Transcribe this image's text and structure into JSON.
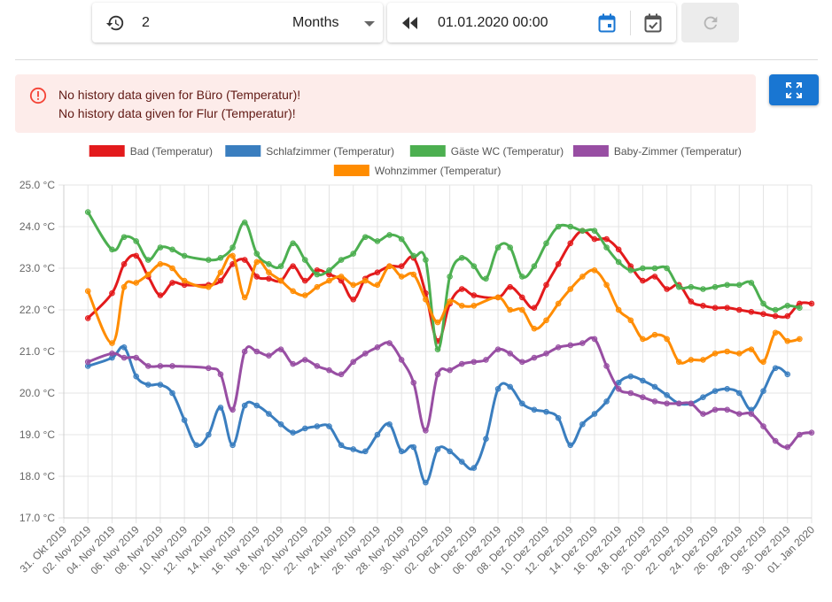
{
  "range": {
    "value": "2",
    "unit": "Months"
  },
  "start": {
    "value": "01.01.2020 00:00"
  },
  "alert": {
    "lines": [
      "No history data given for Büro (Temperatur)!",
      "No history data given for Flur (Temperatur)!"
    ]
  },
  "colors": {
    "accent": "#1976d2",
    "alert_bg": "#fdecea",
    "alert_icon": "#f44336"
  },
  "icons": [
    "history-icon",
    "dropdown-arrow-icon",
    "rewind-icon",
    "calendar-icon",
    "calendar-check-icon",
    "refresh-icon",
    "error-icon",
    "fullscreen-icon"
  ],
  "chart_data": {
    "type": "line",
    "title": "",
    "xlabel": "",
    "ylabel": "",
    "ylim": [
      17,
      25
    ],
    "yticks": [
      "17.0 °C",
      "18.0 °C",
      "19.0 °C",
      "20.0 °C",
      "21.0 °C",
      "22.0 °C",
      "23.0 °C",
      "24.0 °C",
      "25.0 °C"
    ],
    "xticks": [
      "31. Okt 2019",
      "02. Nov 2019",
      "04. Nov 2019",
      "06. Nov 2019",
      "08. Nov 2019",
      "10. Nov 2019",
      "12. Nov 2019",
      "14. Nov 2019",
      "16. Nov 2019",
      "18. Nov 2019",
      "20. Nov 2019",
      "22. Nov 2019",
      "24. Nov 2019",
      "26. Nov 2019",
      "28. Nov 2019",
      "30. Nov 2019",
      "02. Dez 2019",
      "04. Dez 2019",
      "06. Dez 2019",
      "08. Dez 2019",
      "10. Dez 2019",
      "12. Dez 2019",
      "14. Dez 2019",
      "16. Dez 2019",
      "18. Dez 2019",
      "20. Dez 2019",
      "22. Dez 2019",
      "24. Dez 2019",
      "26. Dez 2019",
      "28. Dez 2019",
      "30. Dez 2019",
      "01. Jan 2020"
    ],
    "legend_position": "top",
    "grid": true,
    "series": [
      {
        "name": "Bad (Temperatur)",
        "color": "#e31a1c",
        "points": [
          [
            1.0,
            21.8
          ],
          [
            2.0,
            22.4
          ],
          [
            2.5,
            23.1
          ],
          [
            3.0,
            23.3
          ],
          [
            3.5,
            22.8
          ],
          [
            4.0,
            22.35
          ],
          [
            4.5,
            22.65
          ],
          [
            5.0,
            22.6
          ],
          [
            6.0,
            22.6
          ],
          [
            6.5,
            22.7
          ],
          [
            7.0,
            23.1
          ],
          [
            7.5,
            23.2
          ],
          [
            8.0,
            22.8
          ],
          [
            8.5,
            22.75
          ],
          [
            9.0,
            22.7
          ],
          [
            9.5,
            23.05
          ],
          [
            10.0,
            22.7
          ],
          [
            10.5,
            22.95
          ],
          [
            11.0,
            22.85
          ],
          [
            11.5,
            22.7
          ],
          [
            12.0,
            22.25
          ],
          [
            12.5,
            22.75
          ],
          [
            13.0,
            22.9
          ],
          [
            13.5,
            23.05
          ],
          [
            14.0,
            23.05
          ],
          [
            14.5,
            23.25
          ],
          [
            15.0,
            22.4
          ],
          [
            15.5,
            21.25
          ],
          [
            16.0,
            22.15
          ],
          [
            16.5,
            22.5
          ],
          [
            17.0,
            22.35
          ],
          [
            18.0,
            22.3
          ],
          [
            18.5,
            22.55
          ],
          [
            19.0,
            22.3
          ],
          [
            19.5,
            22.05
          ],
          [
            20.0,
            22.6
          ],
          [
            20.5,
            23.1
          ],
          [
            21.0,
            23.6
          ],
          [
            21.5,
            23.9
          ],
          [
            22.0,
            23.7
          ],
          [
            22.5,
            23.7
          ],
          [
            23.0,
            23.45
          ],
          [
            23.5,
            23.05
          ],
          [
            24.0,
            22.7
          ],
          [
            24.5,
            22.8
          ],
          [
            25.0,
            22.5
          ],
          [
            25.5,
            22.6
          ],
          [
            26.0,
            22.2
          ],
          [
            26.5,
            22.1
          ],
          [
            27.0,
            22.05
          ],
          [
            27.5,
            22.05
          ],
          [
            28.0,
            22.0
          ],
          [
            28.5,
            21.95
          ],
          [
            29.0,
            21.9
          ],
          [
            29.5,
            21.85
          ],
          [
            30.0,
            21.85
          ],
          [
            30.5,
            22.15
          ],
          [
            31.0,
            22.15
          ]
        ]
      },
      {
        "name": "Schlafzimmer (Temperatur)",
        "color": "#3a7ebf",
        "points": [
          [
            1.0,
            20.65
          ],
          [
            2.0,
            20.85
          ],
          [
            2.5,
            21.1
          ],
          [
            3.0,
            20.4
          ],
          [
            3.5,
            20.2
          ],
          [
            4.0,
            20.2
          ],
          [
            4.5,
            20.0
          ],
          [
            5.0,
            19.35
          ],
          [
            5.5,
            18.75
          ],
          [
            6.0,
            19.0
          ],
          [
            6.5,
            19.65
          ],
          [
            7.0,
            18.75
          ],
          [
            7.5,
            19.7
          ],
          [
            8.0,
            19.7
          ],
          [
            8.5,
            19.5
          ],
          [
            9.0,
            19.25
          ],
          [
            9.5,
            19.05
          ],
          [
            10.0,
            19.15
          ],
          [
            10.5,
            19.2
          ],
          [
            11.0,
            19.2
          ],
          [
            11.5,
            18.75
          ],
          [
            12.0,
            18.65
          ],
          [
            12.5,
            18.6
          ],
          [
            13.0,
            19.0
          ],
          [
            13.5,
            19.25
          ],
          [
            14.0,
            18.6
          ],
          [
            14.5,
            18.7
          ],
          [
            15.0,
            17.85
          ],
          [
            15.5,
            18.65
          ],
          [
            16.0,
            18.6
          ],
          [
            16.5,
            18.35
          ],
          [
            17.0,
            18.2
          ],
          [
            17.5,
            18.9
          ],
          [
            18.0,
            20.1
          ],
          [
            18.5,
            20.15
          ],
          [
            19.0,
            19.75
          ],
          [
            19.5,
            19.6
          ],
          [
            20.0,
            19.55
          ],
          [
            20.5,
            19.4
          ],
          [
            21.0,
            18.75
          ],
          [
            21.5,
            19.25
          ],
          [
            22.0,
            19.5
          ],
          [
            22.5,
            19.8
          ],
          [
            23.0,
            20.25
          ],
          [
            23.5,
            20.4
          ],
          [
            24.0,
            20.3
          ],
          [
            24.5,
            20.15
          ],
          [
            25.0,
            19.95
          ],
          [
            25.5,
            19.75
          ],
          [
            26.0,
            19.75
          ],
          [
            26.5,
            19.9
          ],
          [
            27.0,
            20.05
          ],
          [
            27.5,
            20.1
          ],
          [
            28.0,
            20.0
          ],
          [
            28.5,
            19.6
          ],
          [
            29.0,
            20.05
          ],
          [
            29.5,
            20.6
          ],
          [
            30.0,
            20.45
          ]
        ]
      },
      {
        "name": "Gäste WC (Temperatur)",
        "color": "#4caf50",
        "points": [
          [
            1.0,
            24.35
          ],
          [
            2.0,
            23.45
          ],
          [
            2.5,
            23.75
          ],
          [
            3.0,
            23.65
          ],
          [
            3.5,
            23.2
          ],
          [
            4.0,
            23.5
          ],
          [
            4.5,
            23.45
          ],
          [
            5.0,
            23.3
          ],
          [
            6.0,
            23.2
          ],
          [
            6.5,
            23.25
          ],
          [
            7.0,
            23.5
          ],
          [
            7.5,
            24.1
          ],
          [
            8.0,
            23.35
          ],
          [
            8.5,
            23.1
          ],
          [
            9.0,
            23.05
          ],
          [
            9.5,
            23.6
          ],
          [
            10.0,
            23.2
          ],
          [
            10.5,
            22.85
          ],
          [
            11.0,
            22.95
          ],
          [
            11.5,
            23.2
          ],
          [
            12.0,
            23.35
          ],
          [
            12.5,
            23.75
          ],
          [
            13.0,
            23.65
          ],
          [
            13.5,
            23.8
          ],
          [
            14.0,
            23.7
          ],
          [
            14.5,
            23.3
          ],
          [
            15.0,
            23.2
          ],
          [
            15.5,
            21.05
          ],
          [
            16.0,
            22.8
          ],
          [
            16.5,
            23.25
          ],
          [
            17.0,
            23.05
          ],
          [
            17.5,
            22.75
          ],
          [
            18.0,
            23.5
          ],
          [
            18.5,
            23.5
          ],
          [
            19.0,
            22.8
          ],
          [
            19.5,
            23.05
          ],
          [
            20.0,
            23.6
          ],
          [
            20.5,
            24.0
          ],
          [
            21.0,
            24.0
          ],
          [
            21.5,
            23.9
          ],
          [
            22.0,
            23.9
          ],
          [
            22.5,
            23.5
          ],
          [
            23.0,
            23.15
          ],
          [
            23.5,
            22.95
          ],
          [
            24.0,
            23.0
          ],
          [
            24.5,
            23.0
          ],
          [
            25.0,
            23.0
          ],
          [
            25.5,
            22.55
          ],
          [
            26.0,
            22.55
          ],
          [
            26.5,
            22.5
          ],
          [
            27.0,
            22.55
          ],
          [
            27.5,
            22.6
          ],
          [
            28.0,
            22.6
          ],
          [
            28.5,
            22.65
          ],
          [
            29.0,
            22.15
          ],
          [
            29.5,
            22.0
          ],
          [
            30.0,
            22.1
          ],
          [
            30.5,
            22.05
          ]
        ]
      },
      {
        "name": "Baby-Zimmer (Temperatur)",
        "color": "#984ea3",
        "points": [
          [
            1.0,
            20.75
          ],
          [
            2.0,
            20.95
          ],
          [
            2.5,
            20.85
          ],
          [
            3.0,
            20.85
          ],
          [
            3.5,
            20.65
          ],
          [
            4.0,
            20.65
          ],
          [
            4.5,
            20.65
          ],
          [
            6.0,
            20.6
          ],
          [
            6.5,
            20.45
          ],
          [
            7.0,
            19.6
          ],
          [
            7.5,
            21.0
          ],
          [
            8.0,
            21.0
          ],
          [
            8.5,
            20.9
          ],
          [
            9.0,
            21.05
          ],
          [
            9.5,
            20.7
          ],
          [
            10.0,
            20.8
          ],
          [
            10.5,
            20.65
          ],
          [
            11.0,
            20.55
          ],
          [
            11.5,
            20.45
          ],
          [
            12.0,
            20.75
          ],
          [
            12.5,
            20.95
          ],
          [
            13.0,
            21.1
          ],
          [
            13.5,
            21.2
          ],
          [
            14.0,
            20.8
          ],
          [
            14.5,
            20.25
          ],
          [
            15.0,
            19.1
          ],
          [
            15.5,
            20.45
          ],
          [
            16.0,
            20.55
          ],
          [
            16.5,
            20.7
          ],
          [
            17.0,
            20.75
          ],
          [
            17.5,
            20.8
          ],
          [
            18.0,
            21.05
          ],
          [
            18.5,
            20.95
          ],
          [
            19.0,
            20.75
          ],
          [
            19.5,
            20.85
          ],
          [
            20.0,
            20.95
          ],
          [
            20.5,
            21.1
          ],
          [
            21.0,
            21.15
          ],
          [
            21.5,
            21.2
          ],
          [
            22.0,
            21.3
          ],
          [
            22.5,
            20.65
          ],
          [
            23.0,
            20.1
          ],
          [
            23.5,
            20.0
          ],
          [
            24.0,
            19.9
          ],
          [
            24.5,
            19.8
          ],
          [
            25.0,
            19.75
          ],
          [
            25.5,
            19.75
          ],
          [
            26.0,
            19.75
          ],
          [
            26.5,
            19.5
          ],
          [
            27.0,
            19.6
          ],
          [
            27.5,
            19.6
          ],
          [
            28.0,
            19.5
          ],
          [
            28.5,
            19.5
          ],
          [
            29.0,
            19.2
          ],
          [
            29.5,
            18.85
          ],
          [
            30.0,
            18.7
          ],
          [
            30.5,
            19.0
          ],
          [
            31.0,
            19.05
          ]
        ]
      },
      {
        "name": "Wohnzimmer (Temperatur)",
        "color": "#ff8c00",
        "points": [
          [
            1.0,
            22.45
          ],
          [
            2.0,
            21.2
          ],
          [
            2.5,
            22.55
          ],
          [
            3.0,
            22.65
          ],
          [
            3.5,
            22.85
          ],
          [
            4.0,
            23.1
          ],
          [
            4.5,
            23.0
          ],
          [
            5.0,
            22.7
          ],
          [
            6.0,
            22.55
          ],
          [
            6.5,
            22.9
          ],
          [
            7.0,
            23.3
          ],
          [
            7.5,
            22.3
          ],
          [
            8.0,
            23.15
          ],
          [
            8.5,
            22.9
          ],
          [
            9.0,
            22.7
          ],
          [
            9.5,
            22.45
          ],
          [
            10.0,
            22.35
          ],
          [
            10.5,
            22.55
          ],
          [
            11.0,
            22.7
          ],
          [
            11.5,
            22.8
          ],
          [
            12.0,
            22.6
          ],
          [
            12.5,
            22.7
          ],
          [
            13.0,
            22.6
          ],
          [
            13.5,
            23.05
          ],
          [
            14.0,
            22.8
          ],
          [
            14.5,
            22.85
          ],
          [
            15.0,
            22.25
          ],
          [
            15.5,
            21.7
          ],
          [
            16.0,
            22.2
          ],
          [
            16.5,
            22.1
          ],
          [
            17.0,
            22.1
          ],
          [
            18.0,
            22.3
          ],
          [
            18.5,
            22.0
          ],
          [
            19.0,
            22.0
          ],
          [
            19.5,
            21.55
          ],
          [
            20.0,
            21.75
          ],
          [
            20.5,
            22.15
          ],
          [
            21.0,
            22.5
          ],
          [
            21.5,
            22.8
          ],
          [
            22.0,
            22.95
          ],
          [
            22.5,
            22.6
          ],
          [
            23.0,
            22.0
          ],
          [
            23.5,
            21.75
          ],
          [
            24.0,
            21.3
          ],
          [
            24.5,
            21.4
          ],
          [
            25.0,
            21.3
          ],
          [
            25.5,
            20.75
          ],
          [
            26.0,
            20.8
          ],
          [
            26.5,
            20.8
          ],
          [
            27.0,
            20.95
          ],
          [
            27.5,
            21.0
          ],
          [
            28.0,
            20.95
          ],
          [
            28.5,
            21.05
          ],
          [
            29.0,
            20.75
          ],
          [
            29.5,
            21.45
          ],
          [
            30.0,
            21.25
          ],
          [
            30.5,
            21.3
          ]
        ]
      }
    ]
  }
}
